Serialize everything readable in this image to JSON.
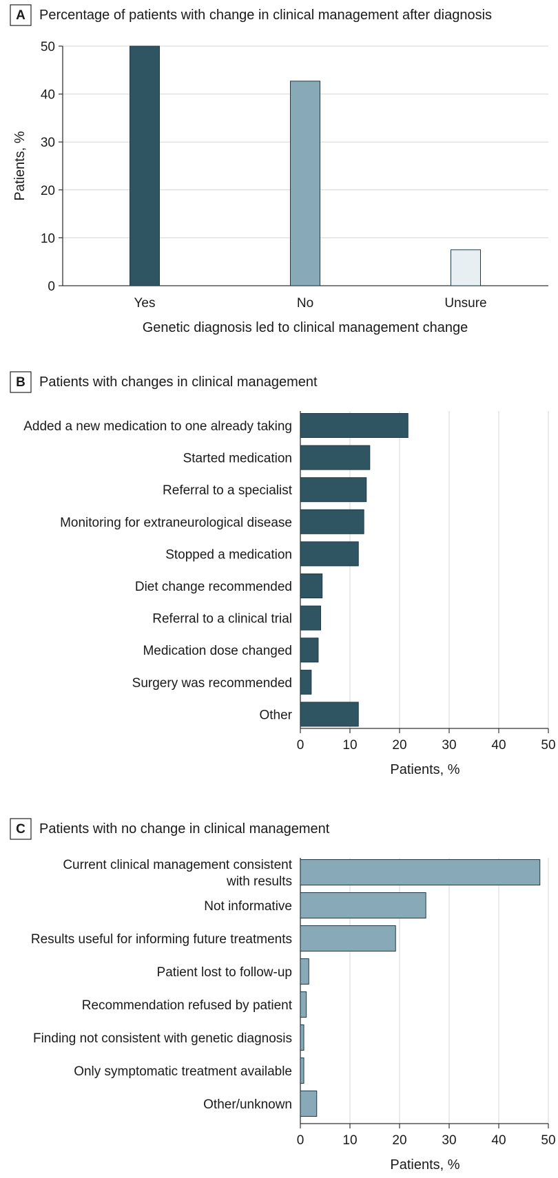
{
  "colors": {
    "dark": "#2f5562",
    "mid": "#88a9b8",
    "light": "#e8eff2",
    "outline": "#1f3a44",
    "grid": "#d4d4d4",
    "axis": "#333333"
  },
  "chart_data": [
    {
      "panel": "A",
      "type": "bar",
      "orientation": "vertical",
      "title": "Percentage of patients with change in clinical management after diagnosis",
      "xlabel": "Genetic diagnosis led to clinical management change",
      "ylabel": "Patients, %",
      "ylim": [
        0,
        50
      ],
      "yticks": [
        0,
        10,
        20,
        30,
        40,
        50
      ],
      "grid": true,
      "categories": [
        "Yes",
        "No",
        "Unsure"
      ],
      "values": [
        50,
        42.7,
        7.5
      ],
      "bar_colors": [
        "dark",
        "mid",
        "light"
      ]
    },
    {
      "panel": "B",
      "type": "bar",
      "orientation": "horizontal",
      "title": "Patients with changes in clinical management",
      "xlabel": "Patients, %",
      "xlim": [
        0,
        50
      ],
      "xticks": [
        0,
        10,
        20,
        30,
        40,
        50
      ],
      "grid": true,
      "categories": [
        [
          "Added a new medication to one already taking"
        ],
        [
          "Started medication"
        ],
        [
          "Referral to a specialist"
        ],
        [
          "Monitoring for extraneurological disease"
        ],
        [
          "Stopped a medication"
        ],
        [
          "Diet change recommended"
        ],
        [
          "Referral to a clinical trial"
        ],
        [
          "Medication dose changed"
        ],
        [
          "Surgery was recommended"
        ],
        [
          "Other"
        ]
      ],
      "values": [
        21.7,
        14.0,
        13.3,
        12.8,
        11.7,
        4.4,
        4.1,
        3.6,
        2.2,
        11.7
      ],
      "bar_color": "dark"
    },
    {
      "panel": "C",
      "type": "bar",
      "orientation": "horizontal",
      "title": "Patients with no change in clinical management",
      "xlabel": "Patients, %",
      "xlim": [
        0,
        50
      ],
      "xticks": [
        0,
        10,
        20,
        30,
        40,
        50
      ],
      "grid": true,
      "categories": [
        [
          "Current clinical management consistent",
          "with results"
        ],
        [
          "Not informative"
        ],
        [
          "Results useful for informing future treatments"
        ],
        [
          "Patient lost to follow-up"
        ],
        [
          "Recommendation refused by patient"
        ],
        [
          "Finding not consistent with genetic diagnosis"
        ],
        [
          "Only symptomatic treatment available"
        ],
        [
          "Other/unknown"
        ]
      ],
      "values": [
        48.3,
        25.3,
        19.2,
        1.7,
        1.2,
        0.7,
        0.7,
        3.3
      ],
      "bar_color": "mid"
    }
  ]
}
